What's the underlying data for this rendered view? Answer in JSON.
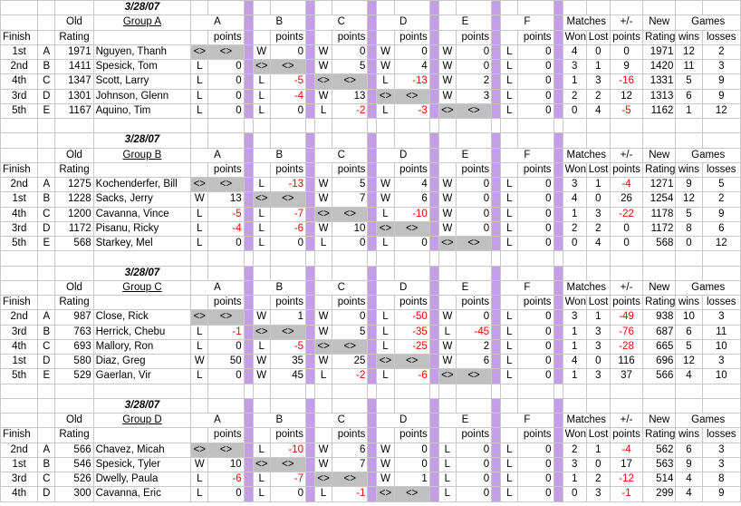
{
  "labels": {
    "old": "Old",
    "finish": "Finish",
    "rating": "Rating",
    "opponents": [
      "A",
      "B",
      "C",
      "D",
      "E",
      "F"
    ],
    "points": "points",
    "matches": "Matches",
    "plusminus": "+/-",
    "won": "Won",
    "lost": "Lost",
    "new": "New",
    "new_rating": "Rating",
    "games": "Games",
    "wins": "wins",
    "losses": "losses",
    "self": "<>"
  },
  "groups": [
    {
      "date": "3/28/07",
      "name": "Group A",
      "rows": [
        {
          "finish": "1st",
          "letter": "A",
          "rating": "1971",
          "player": "Nguyen, Thanh",
          "results": [
            [
              "<>",
              "<>"
            ],
            [
              "W",
              "0"
            ],
            [
              "W",
              "0"
            ],
            [
              "W",
              "0"
            ],
            [
              "W",
              "0"
            ],
            [
              "L",
              "0"
            ]
          ],
          "won": "4",
          "lost": "0",
          "pm": "0",
          "new_rating": "1971",
          "wins": "12",
          "losses": "2"
        },
        {
          "finish": "2nd",
          "letter": "B",
          "rating": "1411",
          "player": "Spesick, Tom",
          "results": [
            [
              "L",
              "0"
            ],
            [
              "<>",
              "<>"
            ],
            [
              "W",
              "5"
            ],
            [
              "W",
              "4"
            ],
            [
              "W",
              "0"
            ],
            [
              "L",
              "0"
            ]
          ],
          "won": "3",
          "lost": "1",
          "pm": "9",
          "new_rating": "1420",
          "wins": "11",
          "losses": "3"
        },
        {
          "finish": "4th",
          "letter": "C",
          "rating": "1347",
          "player": "Scott, Larry",
          "results": [
            [
              "L",
              "0"
            ],
            [
              "L",
              "-5"
            ],
            [
              "<>",
              "<>"
            ],
            [
              "L",
              "-13"
            ],
            [
              "W",
              "2"
            ],
            [
              "L",
              "0"
            ]
          ],
          "won": "1",
          "lost": "3",
          "pm": "-16",
          "new_rating": "1331",
          "wins": "5",
          "losses": "9"
        },
        {
          "finish": "3rd",
          "letter": "D",
          "rating": "1301",
          "player": "Johnson, Glenn",
          "results": [
            [
              "L",
              "0"
            ],
            [
              "L",
              "-4"
            ],
            [
              "W",
              "13"
            ],
            [
              "<>",
              "<>"
            ],
            [
              "W",
              "3"
            ],
            [
              "L",
              "0"
            ]
          ],
          "won": "2",
          "lost": "2",
          "pm": "12",
          "new_rating": "1313",
          "wins": "6",
          "losses": "9"
        },
        {
          "finish": "5th",
          "letter": "E",
          "rating": "1167",
          "player": "Aquino, Tim",
          "results": [
            [
              "L",
              "0"
            ],
            [
              "L",
              "0"
            ],
            [
              "L",
              "-2"
            ],
            [
              "L",
              "-3"
            ],
            [
              "<>",
              "<>"
            ],
            [
              "L",
              "0"
            ]
          ],
          "won": "0",
          "lost": "4",
          "pm": "-5",
          "new_rating": "1162",
          "wins": "1",
          "losses": "12"
        }
      ]
    },
    {
      "date": "3/28/07",
      "name": "Group B",
      "rows": [
        {
          "finish": "2nd",
          "letter": "A",
          "rating": "1275",
          "player": "Kochenderfer, Bill",
          "results": [
            [
              "<>",
              "<>"
            ],
            [
              "L",
              "-13"
            ],
            [
              "W",
              "5"
            ],
            [
              "W",
              "4"
            ],
            [
              "W",
              "0"
            ],
            [
              "L",
              "0"
            ]
          ],
          "won": "3",
          "lost": "1",
          "pm": "-4",
          "new_rating": "1271",
          "wins": "9",
          "losses": "5"
        },
        {
          "finish": "1st",
          "letter": "B",
          "rating": "1228",
          "player": "Sacks, Jerry",
          "results": [
            [
              "W",
              "13"
            ],
            [
              "<>",
              "<>"
            ],
            [
              "W",
              "7"
            ],
            [
              "W",
              "6"
            ],
            [
              "W",
              "0"
            ],
            [
              "L",
              "0"
            ]
          ],
          "won": "4",
          "lost": "0",
          "pm": "26",
          "new_rating": "1254",
          "wins": "12",
          "losses": "2"
        },
        {
          "finish": "4th",
          "letter": "C",
          "rating": "1200",
          "player": "Cavanna, Vince",
          "results": [
            [
              "L",
              "-5"
            ],
            [
              "L",
              "-7"
            ],
            [
              "<>",
              "<>"
            ],
            [
              "L",
              "-10"
            ],
            [
              "W",
              "0"
            ],
            [
              "L",
              "0"
            ]
          ],
          "won": "1",
          "lost": "3",
          "pm": "-22",
          "new_rating": "1178",
          "wins": "5",
          "losses": "9"
        },
        {
          "finish": "3rd",
          "letter": "D",
          "rating": "1172",
          "player": "Pisanu, Ricky",
          "results": [
            [
              "L",
              "-4"
            ],
            [
              "L",
              "-6"
            ],
            [
              "W",
              "10"
            ],
            [
              "<>",
              "<>"
            ],
            [
              "W",
              "0"
            ],
            [
              "L",
              "0"
            ]
          ],
          "won": "2",
          "lost": "2",
          "pm": "0",
          "new_rating": "1172",
          "wins": "8",
          "losses": "6"
        },
        {
          "finish": "5th",
          "letter": "E",
          "rating": "568",
          "player": "Starkey, Mel",
          "results": [
            [
              "L",
              "0"
            ],
            [
              "L",
              "0"
            ],
            [
              "L",
              "0"
            ],
            [
              "L",
              "0"
            ],
            [
              "<>",
              "<>"
            ],
            [
              "L",
              "0"
            ]
          ],
          "won": "0",
          "lost": "4",
          "pm": "0",
          "new_rating": "568",
          "wins": "0",
          "losses": "12"
        }
      ]
    },
    {
      "date": "3/28/07",
      "name": "Group C",
      "rows": [
        {
          "finish": "2nd",
          "letter": "A",
          "rating": "987",
          "player": "Close, Rick",
          "results": [
            [
              "<>",
              "<>"
            ],
            [
              "W",
              "1"
            ],
            [
              "W",
              "0"
            ],
            [
              "L",
              "-50"
            ],
            [
              "W",
              "0"
            ],
            [
              "L",
              "0"
            ]
          ],
          "won": "3",
          "lost": "1",
          "pm": "-49",
          "new_rating": "938",
          "wins": "10",
          "losses": "3"
        },
        {
          "finish": "3rd",
          "letter": "B",
          "rating": "763",
          "player": "Herrick, Chebu",
          "results": [
            [
              "L",
              "-1"
            ],
            [
              "<>",
              "<>"
            ],
            [
              "W",
              "5"
            ],
            [
              "L",
              "-35"
            ],
            [
              "L",
              "-45"
            ],
            [
              "L",
              "0"
            ]
          ],
          "won": "1",
          "lost": "3",
          "pm": "-76",
          "new_rating": "687",
          "wins": "6",
          "losses": "11"
        },
        {
          "finish": "4th",
          "letter": "C",
          "rating": "693",
          "player": "Mallory, Ron",
          "results": [
            [
              "L",
              "0"
            ],
            [
              "L",
              "-5"
            ],
            [
              "<>",
              "<>"
            ],
            [
              "L",
              "-25"
            ],
            [
              "W",
              "2"
            ],
            [
              "L",
              "0"
            ]
          ],
          "won": "1",
          "lost": "3",
          "pm": "-28",
          "new_rating": "665",
          "wins": "5",
          "losses": "10"
        },
        {
          "finish": "1st",
          "letter": "D",
          "rating": "580",
          "player": "Diaz, Greg",
          "results": [
            [
              "W",
              "50"
            ],
            [
              "W",
              "35"
            ],
            [
              "W",
              "25"
            ],
            [
              "<>",
              "<>"
            ],
            [
              "W",
              "6"
            ],
            [
              "L",
              "0"
            ]
          ],
          "won": "4",
          "lost": "0",
          "pm": "116",
          "new_rating": "696",
          "wins": "12",
          "losses": "3"
        },
        {
          "finish": "5th",
          "letter": "E",
          "rating": "529",
          "player": "Gaerlan, Vir",
          "results": [
            [
              "L",
              "0"
            ],
            [
              "W",
              "45"
            ],
            [
              "L",
              "-2"
            ],
            [
              "L",
              "-6"
            ],
            [
              "<>",
              "<>"
            ],
            [
              "L",
              "0"
            ]
          ],
          "won": "1",
          "lost": "3",
          "pm": "37",
          "new_rating": "566",
          "wins": "4",
          "losses": "10"
        }
      ]
    },
    {
      "date": "3/28/07",
      "name": "Group D",
      "rows": [
        {
          "finish": "2nd",
          "letter": "A",
          "rating": "566",
          "player": "Chavez, Micah",
          "results": [
            [
              "<>",
              "<>"
            ],
            [
              "L",
              "-10"
            ],
            [
              "W",
              "6"
            ],
            [
              "W",
              "0"
            ],
            [
              "L",
              "0"
            ],
            [
              "L",
              "0"
            ]
          ],
          "won": "2",
          "lost": "1",
          "pm": "-4",
          "new_rating": "562",
          "wins": "6",
          "losses": "3"
        },
        {
          "finish": "1st",
          "letter": "B",
          "rating": "546",
          "player": "Spesick, Tyler",
          "results": [
            [
              "W",
              "10"
            ],
            [
              "<>",
              "<>"
            ],
            [
              "W",
              "7"
            ],
            [
              "W",
              "0"
            ],
            [
              "L",
              "0"
            ],
            [
              "L",
              "0"
            ]
          ],
          "won": "3",
          "lost": "0",
          "pm": "17",
          "new_rating": "563",
          "wins": "9",
          "losses": "3"
        },
        {
          "finish": "3rd",
          "letter": "C",
          "rating": "526",
          "player": "Dwelly, Paula",
          "results": [
            [
              "L",
              "-6"
            ],
            [
              "L",
              "-7"
            ],
            [
              "<>",
              "<>"
            ],
            [
              "W",
              "1"
            ],
            [
              "L",
              "0"
            ],
            [
              "L",
              "0"
            ]
          ],
          "won": "1",
          "lost": "2",
          "pm": "-12",
          "new_rating": "514",
          "wins": "4",
          "losses": "8"
        },
        {
          "finish": "4th",
          "letter": "D",
          "rating": "300",
          "player": "Cavanna, Eric",
          "results": [
            [
              "L",
              "0"
            ],
            [
              "L",
              "0"
            ],
            [
              "L",
              "-1"
            ],
            [
              "<>",
              "<>"
            ],
            [
              "L",
              "0"
            ],
            [
              "L",
              "0"
            ]
          ],
          "won": "0",
          "lost": "3",
          "pm": "-1",
          "new_rating": "299",
          "wins": "4",
          "losses": "9"
        }
      ]
    }
  ]
}
